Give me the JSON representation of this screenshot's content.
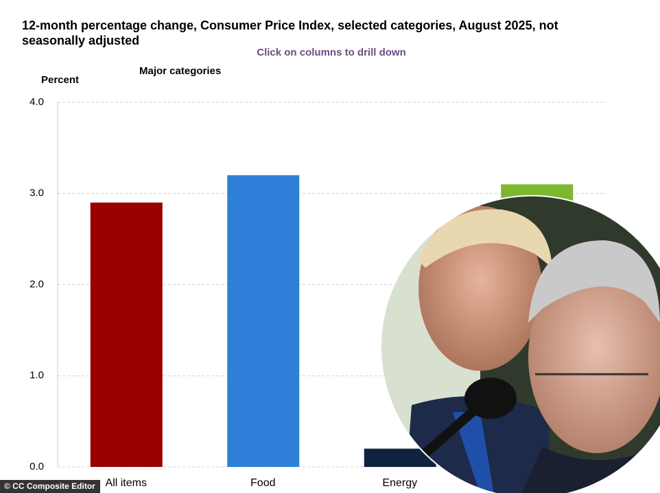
{
  "chart_data": {
    "type": "bar",
    "title": "12-month percentage change, Consumer Price Index, selected categories, August 2025, not seasonally adjusted",
    "subtitle": "Click on columns to drill down",
    "legend_title": "Major categories",
    "y_label": "Percent",
    "categories": [
      "All items",
      "Food",
      "Energy",
      null
    ],
    "values": [
      2.9,
      3.2,
      0.2,
      3.1
    ],
    "colors": [
      "#990000",
      "#2e7fd8",
      "#0f2240",
      "#7cb82f"
    ],
    "ylim": [
      0,
      4
    ],
    "yticks": [
      {
        "value": 0,
        "label": "0.0"
      },
      {
        "value": 1,
        "label": "1.0"
      },
      {
        "value": 2,
        "label": "2.0"
      },
      {
        "value": 3,
        "label": "3.0"
      },
      {
        "value": 4,
        "label": "4.0"
      }
    ],
    "grid": true
  },
  "caption": "© CC Composite Editor"
}
